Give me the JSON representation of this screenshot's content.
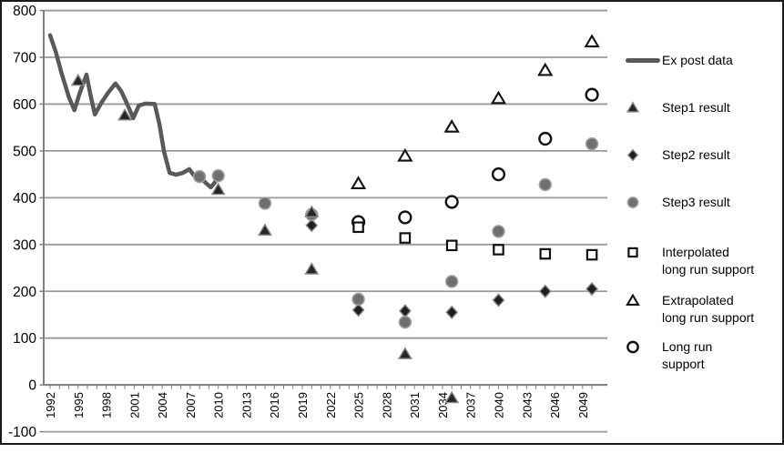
{
  "chart_data": {
    "type": "line+scatter",
    "title": "",
    "xlabel": "",
    "ylabel": "",
    "grid": "horizontal",
    "legend_position": "right",
    "y_axis": {
      "range": [
        -100,
        800
      ],
      "step": 100,
      "ticks": [
        800,
        700,
        600,
        500,
        400,
        300,
        200,
        100,
        0,
        -100
      ]
    },
    "x_axis": {
      "range": [
        1992,
        2050
      ],
      "label_step": 3,
      "tick_labels": [
        "1992",
        "1995",
        "1998",
        "2001",
        "2004",
        "2007",
        "2010",
        "2013",
        "2016",
        "2019",
        "2022",
        "2025",
        "2028",
        "2031",
        "2034",
        "2037",
        "2040",
        "2043",
        "2046",
        "2049"
      ]
    },
    "series": [
      {
        "name": "Ex post data",
        "legend_lines": [
          "Ex post data"
        ],
        "type": "line",
        "marker": "line",
        "color": "#595959",
        "line_width": 4.5,
        "points": [
          [
            1992,
            747
          ],
          [
            1992.6,
            712
          ],
          [
            1993.2,
            668
          ],
          [
            1994,
            616
          ],
          [
            1994.6,
            587
          ],
          [
            1995.2,
            625
          ],
          [
            1995.9,
            663
          ],
          [
            1996.3,
            622
          ],
          [
            1996.8,
            578
          ],
          [
            1997.5,
            603
          ],
          [
            1998.2,
            624
          ],
          [
            1999,
            644
          ],
          [
            1999.6,
            628
          ],
          [
            2000.3,
            598
          ],
          [
            2000.9,
            570
          ],
          [
            2001.5,
            597
          ],
          [
            2002.2,
            601
          ],
          [
            2003.2,
            600
          ],
          [
            2003.7,
            558
          ],
          [
            2004.2,
            498
          ],
          [
            2004.8,
            453
          ],
          [
            2005.5,
            449
          ],
          [
            2006.2,
            453
          ],
          [
            2006.9,
            461
          ],
          [
            2007.4,
            448
          ],
          [
            2008,
            445
          ],
          [
            2008.6,
            433
          ],
          [
            2009.2,
            422
          ],
          [
            2009.6,
            432
          ],
          [
            2010,
            448
          ]
        ]
      },
      {
        "name": "Step1 result",
        "legend_lines": [
          "Step1 result"
        ],
        "type": "scatter",
        "marker": "triangle-filled",
        "fill": "#262626",
        "edge": "#8a8a8a",
        "edge_width": 1.4,
        "points": [
          [
            1995,
            650
          ],
          [
            2000,
            576
          ],
          [
            2010,
            417
          ],
          [
            2015,
            330
          ],
          [
            2020,
            369
          ],
          [
            2020,
            247
          ],
          [
            2030,
            66
          ],
          [
            2035,
            -28
          ]
        ]
      },
      {
        "name": "Step2 result",
        "legend_lines": [
          "Step2 result"
        ],
        "type": "scatter",
        "marker": "diamond-filled",
        "fill": "#1f1f1f",
        "edge": "#8a8a8a",
        "edge_width": 1.4,
        "points": [
          [
            2020,
            341
          ],
          [
            2025,
            160
          ],
          [
            2030,
            158
          ],
          [
            2035,
            155
          ],
          [
            2040,
            181
          ],
          [
            2045,
            200
          ],
          [
            2050,
            205
          ]
        ]
      },
      {
        "name": "Step3 result",
        "legend_lines": [
          "Step3 result"
        ],
        "type": "scatter",
        "marker": "circle-filled",
        "fill": "#6f6f6f",
        "edge": "#9e9e9e",
        "edge_width": 1.6,
        "points": [
          [
            2008,
            445
          ],
          [
            2010,
            447
          ],
          [
            2015,
            388
          ],
          [
            2020,
            364
          ],
          [
            2025,
            183
          ],
          [
            2030,
            134
          ],
          [
            2035,
            221
          ],
          [
            2040,
            328
          ],
          [
            2045,
            428
          ],
          [
            2050,
            515
          ]
        ]
      },
      {
        "name": "Interpolated long run support",
        "legend_lines": [
          "Interpolated",
          "long run support"
        ],
        "type": "scatter",
        "marker": "square-open",
        "fill": "#ffffff",
        "edge": "#121212",
        "edge_width": 2.2,
        "points": [
          [
            2025,
            337
          ],
          [
            2030,
            314
          ],
          [
            2035,
            298
          ],
          [
            2040,
            289
          ],
          [
            2045,
            280
          ],
          [
            2050,
            278
          ]
        ]
      },
      {
        "name": "Extrapolated long run support",
        "legend_lines": [
          "Extrapolated",
          "long run support"
        ],
        "type": "scatter",
        "marker": "triangle-open",
        "fill": "#ffffff",
        "edge": "#121212",
        "edge_width": 2.1,
        "points": [
          [
            2025,
            430
          ],
          [
            2030,
            489
          ],
          [
            2035,
            551
          ],
          [
            2040,
            612
          ],
          [
            2045,
            672
          ],
          [
            2050,
            733
          ]
        ]
      },
      {
        "name": "Long run support",
        "legend_lines": [
          "Long run",
          "support"
        ],
        "type": "scatter",
        "marker": "circle-open",
        "fill": "#ffffff",
        "edge": "#121212",
        "edge_width": 2.4,
        "points": [
          [
            2025,
            348
          ],
          [
            2030,
            358
          ],
          [
            2035,
            391
          ],
          [
            2040,
            450
          ],
          [
            2045,
            526
          ],
          [
            2050,
            620
          ]
        ]
      }
    ],
    "colors": {
      "gridline": "#9a9a9a",
      "axis": "#808080",
      "border": "#1a1a1a",
      "text": "#000000"
    }
  }
}
